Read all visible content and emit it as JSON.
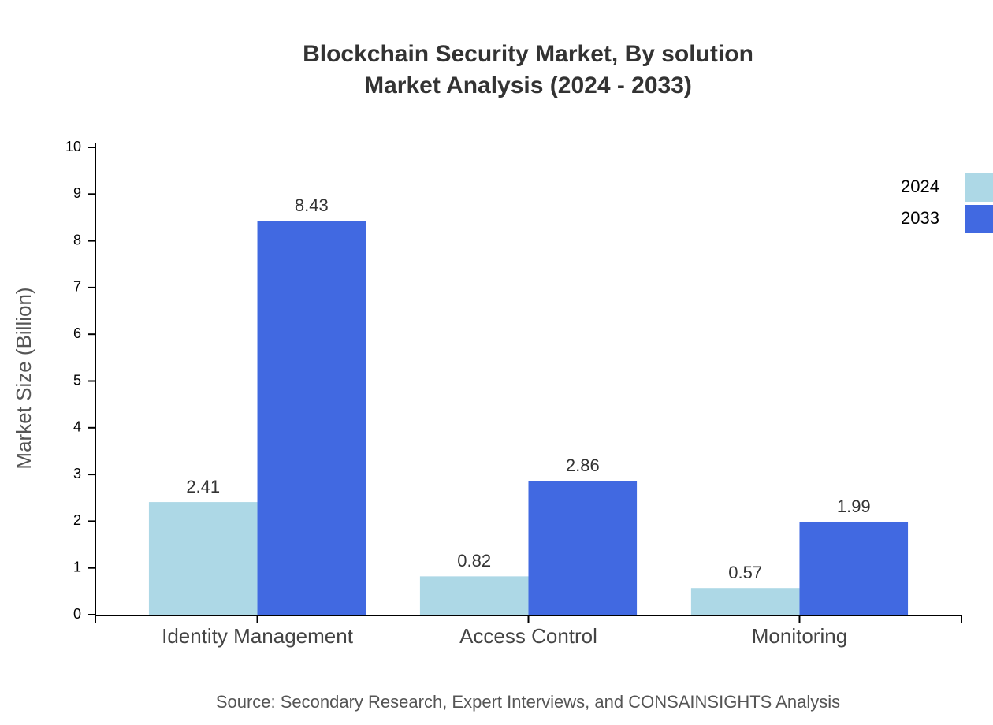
{
  "chart_data": {
    "type": "bar",
    "title": "Blockchain Security Market, By solution",
    "subtitle": "Market Analysis (2024 - 2033)",
    "y_label": "Market Size (Billion)",
    "source": "Source: Secondary Research, Expert Interviews, and CONSAINSIGHTS Analysis",
    "categories": [
      "Identity Management",
      "Access Control",
      "Monitoring"
    ],
    "series": [
      {
        "name": "2024",
        "color": "#add8e6",
        "values": [
          2.41,
          0.82,
          0.57
        ]
      },
      {
        "name": "2033",
        "color": "#4169e1",
        "values": [
          8.43,
          2.86,
          1.99
        ]
      }
    ],
    "ylim": [
      0,
      10
    ],
    "yticks": [
      0,
      1,
      2,
      3,
      4,
      5,
      6,
      7,
      8,
      9,
      10
    ],
    "legend": "top-right"
  }
}
